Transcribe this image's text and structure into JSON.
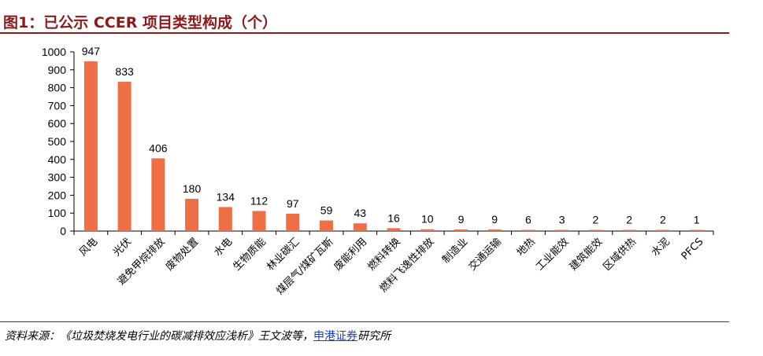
{
  "header": {
    "title": "图1：已公示 CCER 项目类型构成（个）"
  },
  "footer": {
    "source_prefix": "资料来源：《垃圾焚烧发电行业的碳减排效应浅析》王文波等，",
    "source_highlight": "申港证券",
    "source_suffix": "研究所"
  },
  "chart_data": {
    "type": "bar",
    "title": "已公示 CCER 项目类型构成（个）",
    "xlabel": "",
    "ylabel": "",
    "ylim": [
      0,
      1000
    ],
    "yticks": [
      0,
      100,
      200,
      300,
      400,
      500,
      600,
      700,
      800,
      900,
      1000
    ],
    "grid": false,
    "bar_color": "#ee6e45",
    "categories": [
      "风电",
      "光伏",
      "避免甲烷排放",
      "废物处置",
      "水电",
      "生物质能",
      "林业碳汇",
      "煤层气/煤矿瓦斯",
      "废能利用",
      "燃料转换",
      "燃料飞逸性排放",
      "制造业",
      "交通运输",
      "地热",
      "工业能效",
      "建筑能效",
      "区域供热",
      "水泥",
      "PFCS"
    ],
    "values": [
      947,
      833,
      406,
      180,
      134,
      112,
      97,
      59,
      43,
      16,
      10,
      9,
      9,
      6,
      3,
      2,
      2,
      2,
      1
    ]
  }
}
